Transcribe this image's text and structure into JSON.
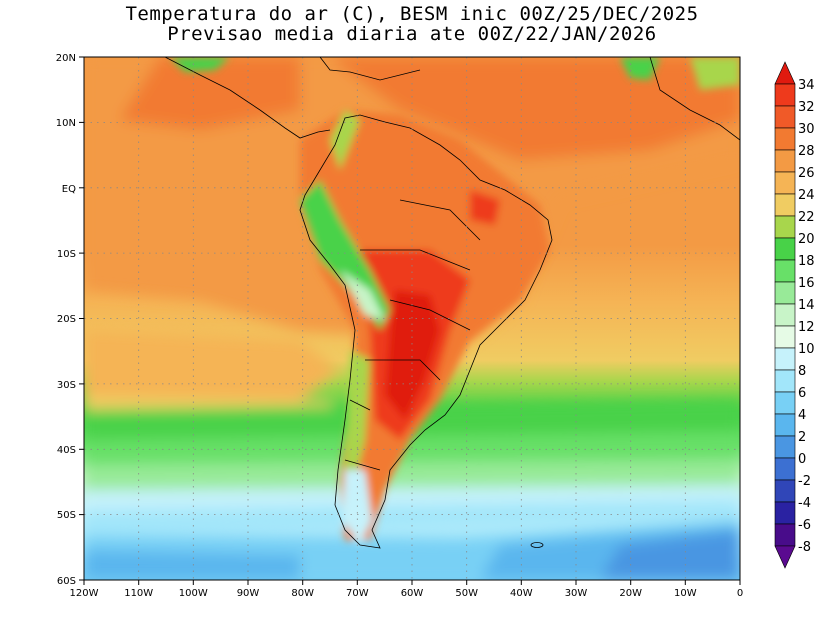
{
  "title": {
    "line1": "Temperatura do ar (C), BESM inic 00Z/25/DEC/2025",
    "line2": "Previsao media diaria ate 00Z/22/JAN/2026"
  },
  "map": {
    "lon_range": [
      -120,
      0
    ],
    "lat_range": [
      -60,
      20
    ],
    "lat_ticks": [
      "20N",
      "10N",
      "EQ",
      "10S",
      "20S",
      "30S",
      "40S",
      "50S",
      "60S"
    ],
    "lon_ticks": [
      "120W",
      "110W",
      "100W",
      "90W",
      "80W",
      "70W",
      "60W",
      "50W",
      "40W",
      "30W",
      "20W",
      "10W",
      "0"
    ]
  },
  "colorbar": {
    "labels": [
      "34",
      "32",
      "30",
      "28",
      "26",
      "24",
      "22",
      "20",
      "18",
      "16",
      "14",
      "12",
      "10",
      "8",
      "6",
      "4",
      "2",
      "0",
      "-2",
      "-4",
      "-6",
      "-8"
    ],
    "colors": [
      "#e01a0f",
      "#ee3a1c",
      "#f05a28",
      "#f27a31",
      "#f39a44",
      "#f5b455",
      "#f0cc62",
      "#a8d64c",
      "#48d248",
      "#68e068",
      "#98ea98",
      "#c8f4c8",
      "#e6fbe6",
      "#c6f2fb",
      "#a2e6fa",
      "#78d0f5",
      "#5ab6ee",
      "#4a96e2",
      "#3c70d2",
      "#3046b8",
      "#2a22a2",
      "#480c8a",
      "#5a0a90"
    ]
  }
}
